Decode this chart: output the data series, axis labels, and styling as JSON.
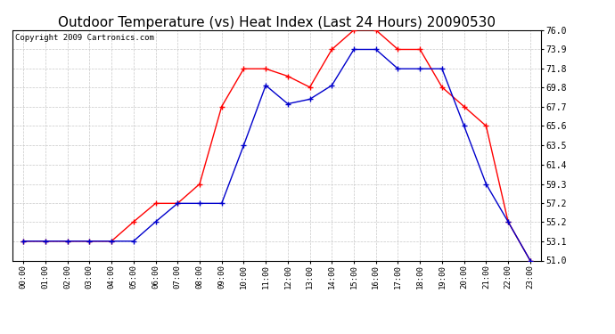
{
  "title": "Outdoor Temperature (vs) Heat Index (Last 24 Hours) 20090530",
  "copyright": "Copyright 2009 Cartronics.com",
  "x_labels": [
    "00:00",
    "01:00",
    "02:00",
    "03:00",
    "04:00",
    "05:00",
    "06:00",
    "07:00",
    "08:00",
    "09:00",
    "10:00",
    "11:00",
    "12:00",
    "13:00",
    "14:00",
    "15:00",
    "16:00",
    "17:00",
    "18:00",
    "19:00",
    "20:00",
    "21:00",
    "22:00",
    "23:00"
  ],
  "temp_red": [
    53.1,
    53.1,
    53.1,
    53.1,
    53.1,
    55.2,
    57.2,
    57.2,
    59.3,
    67.7,
    71.8,
    71.8,
    71.0,
    69.8,
    73.9,
    76.0,
    76.0,
    73.9,
    73.9,
    69.8,
    67.7,
    65.6,
    55.2,
    51.0
  ],
  "heat_blue": [
    53.1,
    53.1,
    53.1,
    53.1,
    53.1,
    53.1,
    55.2,
    57.2,
    57.2,
    57.2,
    63.5,
    70.0,
    68.0,
    68.5,
    70.0,
    73.9,
    73.9,
    71.8,
    71.8,
    71.8,
    65.6,
    59.3,
    55.2,
    51.0
  ],
  "y_ticks": [
    51.0,
    53.1,
    55.2,
    57.2,
    59.3,
    61.4,
    63.5,
    65.6,
    67.7,
    69.8,
    71.8,
    73.9,
    76.0
  ],
  "y_min": 51.0,
  "y_max": 76.0,
  "red_color": "#FF0000",
  "blue_color": "#0000CC",
  "grid_color": "#C8C8C8",
  "bg_color": "#FFFFFF",
  "plot_bg_color": "#FFFFFF",
  "title_fontsize": 11,
  "copyright_fontsize": 6.5
}
